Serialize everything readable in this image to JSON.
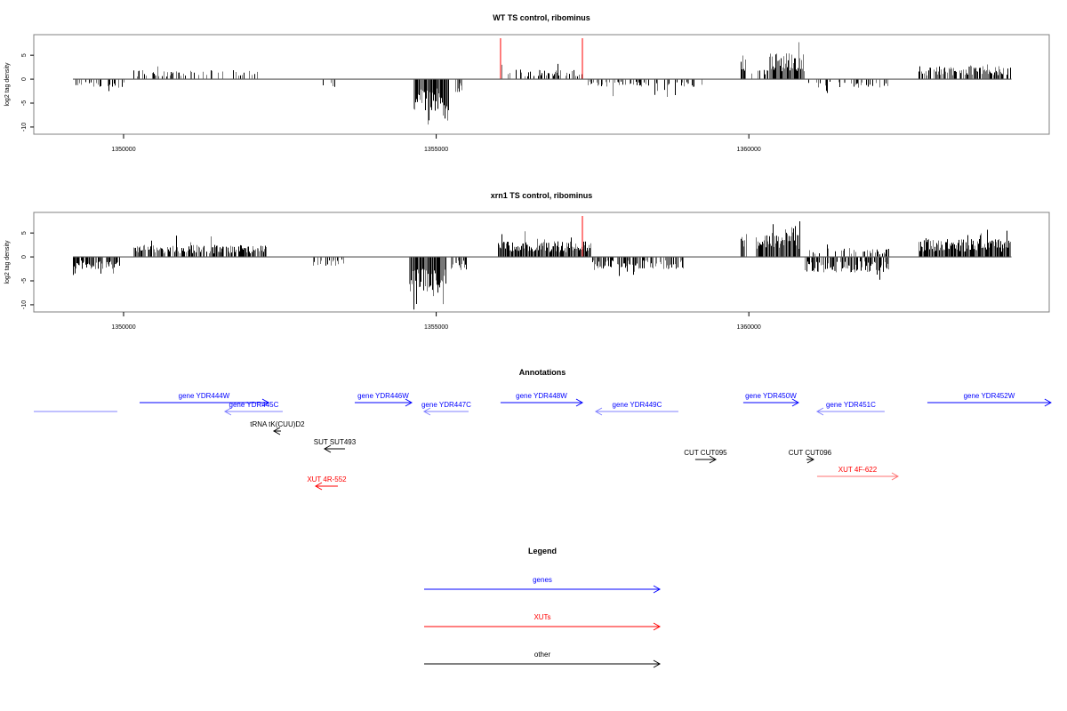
{
  "colors": {
    "gene": "#0000ff",
    "gene_rev": "#8080ff",
    "xut": "#ff0000",
    "xut_pale": "#ff7070",
    "other": "#000000",
    "clip": "#ff0000",
    "bar_dark": "#000000",
    "bar_light": "#777777",
    "axis": "#000000",
    "frame": "#808080"
  },
  "chart_data": [
    {
      "type": "bar",
      "title": "WT TS control, ribominus",
      "xlabel": "",
      "ylabel": "log2 tag density",
      "xlim": [
        1348564,
        1364804
      ],
      "ylim": [
        -11.5,
        9.3
      ],
      "xticks": [
        1350000,
        1355000,
        1360000
      ],
      "xtick_labels": [
        "1350000",
        "1355000",
        "1360000"
      ],
      "yticks": [
        5,
        0,
        -5,
        -10
      ],
      "ytick_labels": [
        "5",
        "0",
        "-5",
        "-10"
      ],
      "baseline": [
        1349190,
        1364200
      ],
      "regions": [
        {
          "start": 1349218,
          "end": 1350014,
          "sign": -1,
          "typical": 1.5,
          "max": 3.3,
          "density": 0.35
        },
        {
          "start": 1350156,
          "end": 1352147,
          "sign": 1,
          "typical": 1.5,
          "max": 3.0,
          "density": 0.3
        },
        {
          "start": 1353072,
          "end": 1353399,
          "sign": -1,
          "typical": 1.4,
          "max": 1.6,
          "density": 0.15
        },
        {
          "start": 1354636,
          "end": 1355205,
          "sign": -1,
          "typical": 5.5,
          "max": 10.5,
          "density": 1.0
        },
        {
          "start": 1355276,
          "end": 1355418,
          "sign": -1,
          "typical": 2.2,
          "max": 3.2,
          "density": 0.6
        },
        {
          "start": 1356029,
          "end": 1357338,
          "sign": 1,
          "typical": 1.6,
          "max": 3.4,
          "density": 0.45
        },
        {
          "start": 1357409,
          "end": 1359257,
          "sign": -1,
          "typical": 1.3,
          "max": 3.8,
          "density": 0.4
        },
        {
          "start": 1359869,
          "end": 1359968,
          "sign": 1,
          "typical": 4.0,
          "max": 5.0,
          "density": 0.9
        },
        {
          "start": 1359968,
          "end": 1360324,
          "sign": 1,
          "typical": 1.6,
          "max": 2.5,
          "density": 0.3
        },
        {
          "start": 1360324,
          "end": 1360893,
          "sign": 1,
          "typical": 4.5,
          "max": 8.0,
          "density": 1.0
        },
        {
          "start": 1360893,
          "end": 1362244,
          "sign": -1,
          "typical": 1.5,
          "max": 3.0,
          "density": 0.3
        },
        {
          "start": 1362713,
          "end": 1364192,
          "sign": 1,
          "typical": 2.2,
          "max": 4.2,
          "density": 0.75
        }
      ],
      "clipped_peaks": [
        1356029,
        1357338
      ]
    },
    {
      "type": "bar",
      "title": "xrn1 TS control, ribominus",
      "xlabel": "",
      "ylabel": "log2 tag density",
      "xlim": [
        1348564,
        1364804
      ],
      "ylim": [
        -11.5,
        9.3
      ],
      "xticks": [
        1350000,
        1355000,
        1360000
      ],
      "xtick_labels": [
        "1350000",
        "1355000",
        "1360000"
      ],
      "yticks": [
        5,
        0,
        -5,
        -10
      ],
      "ytick_labels": [
        "5",
        "0",
        "-5",
        "-10"
      ],
      "baseline": [
        1349190,
        1364200
      ],
      "regions": [
        {
          "start": 1349189,
          "end": 1349943,
          "sign": -1,
          "typical": 2.0,
          "max": 4.0,
          "density": 0.8
        },
        {
          "start": 1350156,
          "end": 1352289,
          "sign": 1,
          "typical": 2.0,
          "max": 5.0,
          "density": 0.85
        },
        {
          "start": 1353000,
          "end": 1353569,
          "sign": -1,
          "typical": 1.5,
          "max": 2.5,
          "density": 0.35
        },
        {
          "start": 1354565,
          "end": 1355162,
          "sign": -1,
          "typical": 6.0,
          "max": 11.0,
          "density": 1.0
        },
        {
          "start": 1355205,
          "end": 1355489,
          "sign": -1,
          "typical": 2.2,
          "max": 3.6,
          "density": 0.7
        },
        {
          "start": 1355987,
          "end": 1357480,
          "sign": 1,
          "typical": 2.6,
          "max": 5.5,
          "density": 1.0
        },
        {
          "start": 1357480,
          "end": 1358973,
          "sign": -1,
          "typical": 2.0,
          "max": 4.0,
          "density": 0.7
        },
        {
          "start": 1359869,
          "end": 1359968,
          "sign": 1,
          "typical": 4.0,
          "max": 5.0,
          "density": 0.9
        },
        {
          "start": 1360110,
          "end": 1360821,
          "sign": 1,
          "typical": 4.2,
          "max": 8.5,
          "density": 1.0
        },
        {
          "start": 1360893,
          "end": 1362244,
          "sign": -1,
          "typical": 2.6,
          "max": 5.0,
          "density": 0.85
        },
        {
          "start": 1360893,
          "end": 1362244,
          "sign": 1,
          "typical": 1.5,
          "max": 3.0,
          "density": 0.35
        },
        {
          "start": 1362713,
          "end": 1364192,
          "sign": 1,
          "typical": 3.0,
          "max": 6.0,
          "density": 1.0
        }
      ],
      "clipped_peaks": [
        1357338
      ]
    }
  ],
  "annotations": {
    "title": "Annotations",
    "features": [
      {
        "label": "",
        "type": "gene",
        "strand": "-",
        "start": 1348564,
        "end": 1349900,
        "row": 2,
        "pale": true,
        "noarrow": true
      },
      {
        "label": "gene YDR444W",
        "type": "gene",
        "strand": "+",
        "start": 1350256,
        "end": 1352318,
        "row": 1
      },
      {
        "label": "gene YDR445C",
        "type": "gene",
        "strand": "-",
        "start": 1351621,
        "end": 1352545,
        "row": 2,
        "pale": true
      },
      {
        "label": "tRNA tK(CUU)D2",
        "type": "other",
        "strand": "-",
        "start": 1352403,
        "end": 1352517,
        "row": 3
      },
      {
        "label": "SUT SUT493",
        "type": "other",
        "strand": "-",
        "start": 1353214,
        "end": 1353541,
        "row": 4
      },
      {
        "label": "XUT 4R-552",
        "type": "xut",
        "strand": "-",
        "start": 1353072,
        "end": 1353427,
        "row": 7
      },
      {
        "label": "gene YDR446W",
        "type": "gene",
        "strand": "+",
        "start": 1353697,
        "end": 1354607,
        "row": 1
      },
      {
        "label": "gene YDR447C",
        "type": "gene",
        "strand": "-",
        "start": 1354806,
        "end": 1355517,
        "row": 2,
        "pale": true
      },
      {
        "label": "gene YDR448W",
        "type": "gene",
        "strand": "+",
        "start": 1356029,
        "end": 1357338,
        "row": 1
      },
      {
        "label": "gene YDR449C",
        "type": "gene",
        "strand": "-",
        "start": 1357551,
        "end": 1358873,
        "row": 2,
        "pale": true
      },
      {
        "label": "gene YDR450W",
        "type": "gene",
        "strand": "+",
        "start": 1359911,
        "end": 1360793,
        "row": 1
      },
      {
        "label": "gene YDR451C",
        "type": "gene",
        "strand": "-",
        "start": 1361092,
        "end": 1362172,
        "row": 2,
        "pale": true
      },
      {
        "label": "gene YDR452W",
        "type": "gene",
        "strand": "+",
        "start": 1362855,
        "end": 1364831,
        "row": 1
      },
      {
        "label": "CUT CUT095",
        "type": "other",
        "strand": "+",
        "start": 1359143,
        "end": 1359471,
        "row": 5
      },
      {
        "label": "CUT CUT096",
        "type": "other",
        "strand": "+",
        "start": 1360921,
        "end": 1361035,
        "row": 5
      },
      {
        "label": "XUT 4F-622",
        "type": "xut",
        "strand": "+",
        "start": 1361092,
        "end": 1362386,
        "row": 6,
        "pale": true
      }
    ]
  },
  "legend": {
    "title": "Legend",
    "entries": [
      {
        "label": "genes",
        "type": "gene"
      },
      {
        "label": "XUTs",
        "type": "xut"
      },
      {
        "label": "other",
        "type": "other"
      }
    ]
  }
}
